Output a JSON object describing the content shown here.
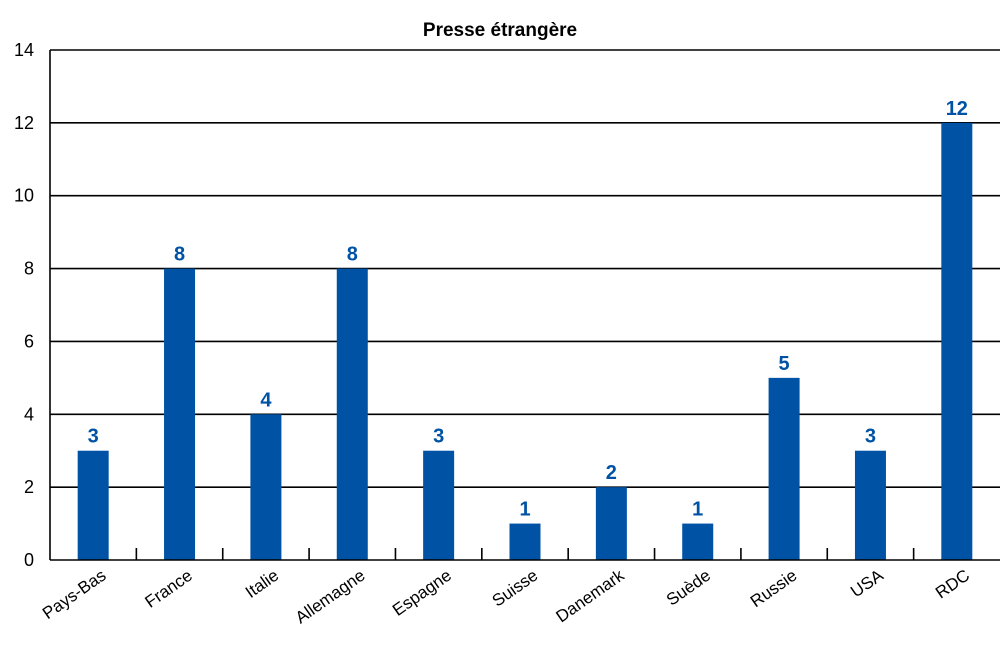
{
  "chart_data": {
    "type": "bar",
    "title": "Presse étrangère",
    "xlabel": "",
    "ylabel": "",
    "categories": [
      "Pays-Bas",
      "France",
      "Italie",
      "Allemagne",
      "Espagne",
      "Suisse",
      "Danemark",
      "Suède",
      "Russie",
      "USA",
      "RDC"
    ],
    "values": [
      3,
      8,
      4,
      8,
      3,
      1,
      2,
      1,
      5,
      3,
      12
    ],
    "ylim": [
      0,
      14
    ],
    "yticks": [
      "0",
      "2",
      "4",
      "6",
      "8",
      "10",
      "12",
      "14"
    ],
    "grid": true,
    "legend": "none",
    "bar_color": "#0052a5",
    "label_color": "#0052a5"
  }
}
